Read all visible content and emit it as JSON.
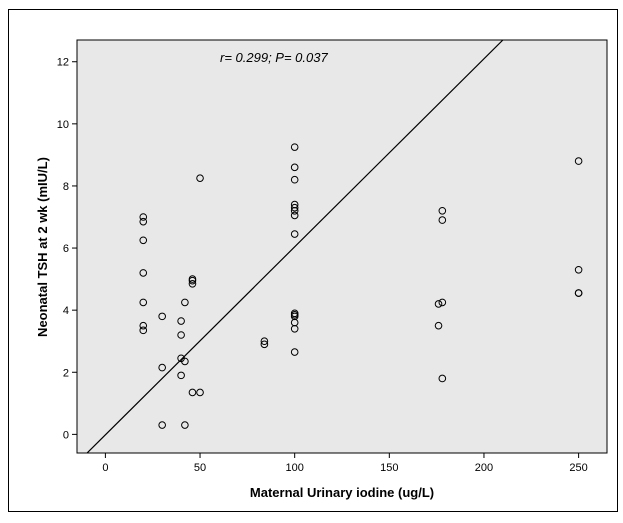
{
  "chart_data": {
    "type": "scatter",
    "title": "",
    "annotation": "r= 0.299; P= 0.037",
    "xlabel": "Maternal Urinary iodine (ug/L)",
    "ylabel": "Neonatal TSH at 2 wk (mIU/L)",
    "xlim": [
      -15,
      265
    ],
    "ylim": [
      -0.6,
      12.7
    ],
    "xticks": [
      0,
      50,
      100,
      150,
      200,
      250
    ],
    "yticks": [
      0,
      2,
      4,
      6,
      8,
      10,
      12
    ],
    "grid": false,
    "legend": "none",
    "colors": {
      "plot_background": "#e8e8e8",
      "marker_stroke": "#000000",
      "line": "#000000"
    },
    "points": {
      "x": [
        20,
        20,
        20,
        20,
        20,
        20,
        20,
        30,
        30,
        30,
        40,
        40,
        40,
        40,
        42,
        42,
        42,
        46,
        46,
        46,
        46,
        50,
        50,
        84,
        84,
        100,
        100,
        100,
        100,
        100,
        100,
        100,
        100,
        100,
        100,
        100,
        100,
        100,
        100,
        176,
        176,
        178,
        178,
        178,
        178,
        250,
        250,
        250,
        250
      ],
      "y": [
        7.0,
        6.85,
        6.25,
        5.2,
        4.25,
        3.5,
        3.35,
        3.8,
        2.15,
        0.3,
        3.65,
        3.2,
        2.45,
        1.9,
        4.25,
        2.35,
        0.3,
        5.0,
        4.95,
        4.85,
        1.35,
        8.25,
        1.35,
        3.0,
        2.9,
        9.25,
        8.6,
        8.2,
        7.4,
        7.3,
        7.2,
        7.05,
        6.45,
        3.9,
        3.8,
        3.6,
        3.4,
        2.65,
        3.85,
        4.2,
        3.5,
        4.25,
        7.2,
        6.9,
        1.8,
        8.8,
        5.3,
        4.55,
        4.55
      ]
    },
    "fit_line": {
      "x": [
        -10,
        210
      ],
      "y": [
        -0.62,
        12.7
      ]
    }
  }
}
